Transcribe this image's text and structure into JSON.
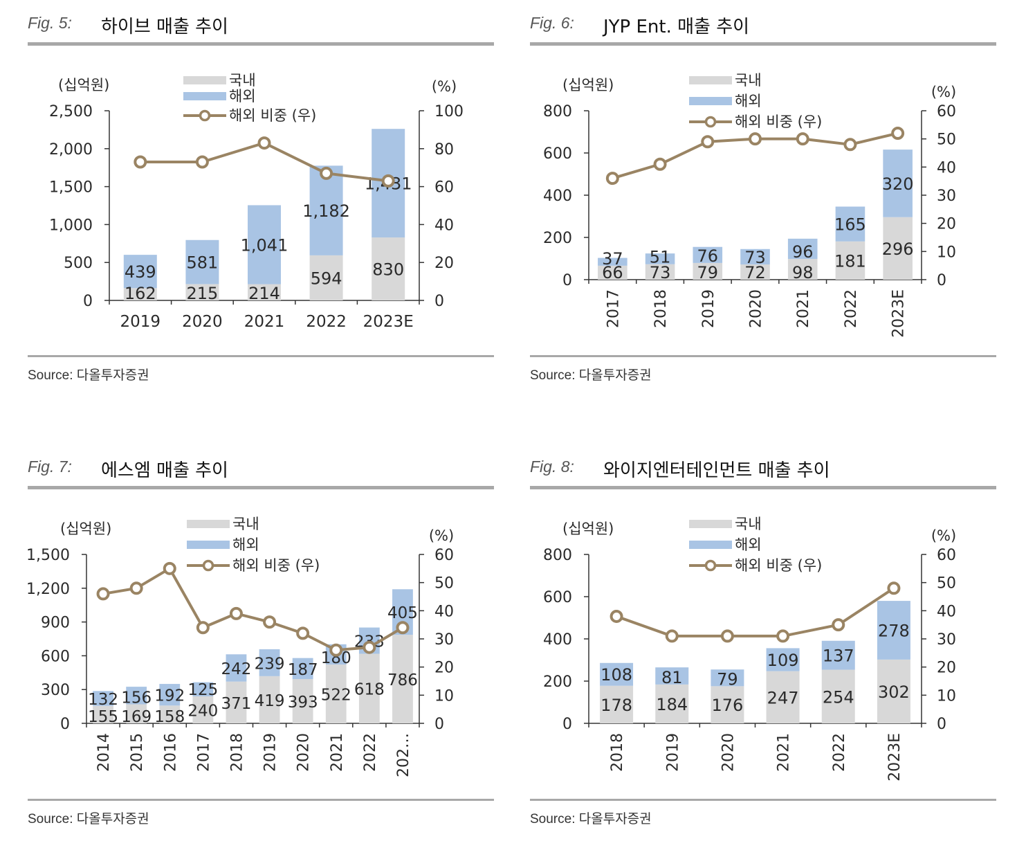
{
  "colors": {
    "domestic": "#d8d8d8",
    "overseas": "#a9c4e4",
    "share": "#9a8463",
    "axis": "#333333",
    "rule": "#a8a8a8"
  },
  "charts": [
    {
      "fig_label": "Fig. 5:",
      "title": "하이브 매출 추이",
      "source": "Source: 다올투자증권",
      "chart_data": {
        "type": "bar",
        "stacked": true,
        "categories": [
          "2019",
          "2020",
          "2021",
          "2022",
          "2023E"
        ],
        "x_label_rotated": false,
        "series": [
          {
            "name": "국내",
            "values": [
              162,
              215,
              214,
              594,
              830
            ]
          },
          {
            "name": "해외",
            "values": [
              439,
              581,
              1041,
              1182,
              1431
            ]
          }
        ],
        "line_series": {
          "name": "해외 비중 (우)",
          "values": [
            73,
            73,
            83,
            67,
            63
          ]
        },
        "overseas_labels": [
          "439",
          "581",
          "1,041",
          "1,182",
          "1,431"
        ],
        "domestic_labels": [
          "162",
          "215",
          "214",
          "594",
          "830"
        ],
        "y_left": {
          "min": 0,
          "max": 2500,
          "step": 500,
          "ticks": [
            "0",
            "500",
            "1,000",
            "1,500",
            "2,000",
            "2,500"
          ],
          "label": "(십억원)"
        },
        "y_right": {
          "min": 0,
          "max": 100,
          "step": 20,
          "ticks": [
            "0",
            "20",
            "40",
            "60",
            "80",
            "100"
          ],
          "label": "(%)"
        },
        "legend": [
          "국내",
          "해외",
          "해외 비중 (우)"
        ],
        "legend_position": "top-center"
      }
    },
    {
      "fig_label": "Fig. 6:",
      "title": "JYP Ent. 매출 추이",
      "source": "Source: 다올투자증권",
      "chart_data": {
        "type": "bar",
        "stacked": true,
        "categories": [
          "2017",
          "2018",
          "2019",
          "2020",
          "2021",
          "2022",
          "2023E"
        ],
        "x_label_rotated": true,
        "series": [
          {
            "name": "국내",
            "values": [
              66,
              73,
              79,
              72,
              98,
              181,
              296
            ]
          },
          {
            "name": "해외",
            "values": [
              37,
              51,
              76,
              73,
              96,
              165,
              320
            ]
          }
        ],
        "line_series": {
          "name": "해외 비중 (우)",
          "values": [
            36,
            41,
            49,
            50,
            50,
            48,
            52
          ]
        },
        "overseas_labels": [
          "37",
          "51",
          "76",
          "73",
          "96",
          "165",
          "320"
        ],
        "domestic_labels": [
          "66",
          "73",
          "79",
          "72",
          "98",
          "181",
          "296"
        ],
        "y_left": {
          "min": 0,
          "max": 800,
          "step": 200,
          "ticks": [
            "0",
            "200",
            "400",
            "600",
            "800"
          ],
          "label": "(십억원)"
        },
        "y_right": {
          "min": 0,
          "max": 60,
          "step": 10,
          "ticks": [
            "0",
            "10",
            "20",
            "30",
            "40",
            "50",
            "60"
          ],
          "label": "(%)"
        },
        "legend": [
          "국내",
          "해외",
          "해외 비중 (우)"
        ],
        "legend_position": "top-center"
      }
    },
    {
      "fig_label": "Fig. 7:",
      "title": "에스엠 매출 추이",
      "source": "Source: 다올투자증권",
      "chart_data": {
        "type": "bar",
        "stacked": true,
        "categories": [
          "2014",
          "2015",
          "2016",
          "2017",
          "2018",
          "2019",
          "2020",
          "2021",
          "2022",
          "202…"
        ],
        "x_label_rotated": true,
        "series": [
          {
            "name": "국내",
            "values": [
              155,
              169,
              158,
              240,
              371,
              419,
              393,
              522,
              618,
              786
            ]
          },
          {
            "name": "해외",
            "values": [
              132,
              156,
              192,
              125,
              242,
              239,
              187,
              180,
              233,
              405
            ]
          }
        ],
        "line_series": {
          "name": "해외 비중 (우)",
          "values": [
            46,
            48,
            55,
            34,
            39,
            36,
            32,
            26,
            27,
            34
          ]
        },
        "overseas_labels": [
          "132",
          "156",
          "192",
          "125",
          "242",
          "239",
          "187",
          "180",
          "233",
          "405"
        ],
        "domestic_labels": [
          "155",
          "169",
          "158",
          "240",
          "371",
          "419",
          "393",
          "522",
          "618",
          "786"
        ],
        "y_left": {
          "min": 0,
          "max": 1500,
          "step": 300,
          "ticks": [
            "0",
            "300",
            "600",
            "900",
            "1,200",
            "1,500"
          ],
          "label": "(십억원)"
        },
        "y_right": {
          "min": 0,
          "max": 60,
          "step": 10,
          "ticks": [
            "0",
            "10",
            "20",
            "30",
            "40",
            "50",
            "60"
          ],
          "label": "(%)"
        },
        "legend": [
          "국내",
          "해외",
          "해외 비중 (우)"
        ],
        "legend_position": "top-center"
      }
    },
    {
      "fig_label": "Fig. 8:",
      "title": "와이지엔터테인먼트 매출 추이",
      "source": "Source: 다올투자증권",
      "chart_data": {
        "type": "bar",
        "stacked": true,
        "categories": [
          "2018",
          "2019",
          "2020",
          "2021",
          "2022",
          "2023E"
        ],
        "x_label_rotated": true,
        "series": [
          {
            "name": "국내",
            "values": [
              178,
              184,
              176,
              247,
              254,
              302
            ]
          },
          {
            "name": "해외",
            "values": [
              108,
              81,
              79,
              109,
              137,
              278
            ]
          }
        ],
        "line_series": {
          "name": "해외 비중 (우)",
          "values": [
            38,
            31,
            31,
            31,
            35,
            48
          ]
        },
        "overseas_labels": [
          "108",
          "81",
          "79",
          "109",
          "137",
          "278"
        ],
        "domestic_labels": [
          "178",
          "184",
          "176",
          "247",
          "254",
          "302"
        ],
        "y_left": {
          "min": 0,
          "max": 800,
          "step": 200,
          "ticks": [
            "0",
            "200",
            "400",
            "600",
            "800"
          ],
          "label": "(십억원)"
        },
        "y_right": {
          "min": 0,
          "max": 60,
          "step": 10,
          "ticks": [
            "0",
            "10",
            "20",
            "30",
            "40",
            "50",
            "60"
          ],
          "label": "(%)"
        },
        "legend": [
          "국내",
          "해외",
          "해외 비중 (우)"
        ],
        "legend_position": "top-center"
      }
    }
  ]
}
